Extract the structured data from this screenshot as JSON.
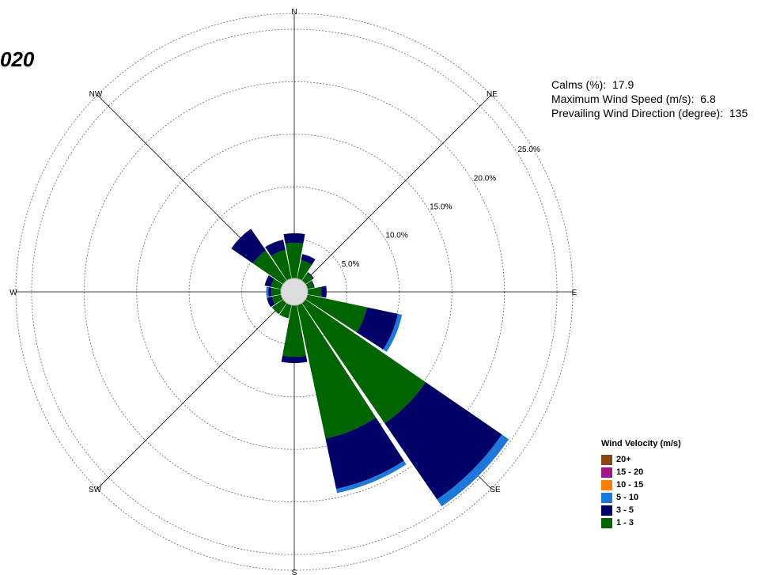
{
  "title": "020",
  "stats": {
    "calms_label": "Calms (%):",
    "calms_value": "17.9",
    "max_speed_label": "Maximum Wind Speed (m/s):",
    "max_speed_value": "6.8",
    "prevailing_label": "Prevailing Wind Direction (degree):",
    "prevailing_value": "135"
  },
  "legend": {
    "title": "Wind Velocity (m/s)",
    "items": [
      {
        "label": "20+",
        "color": "#8B4513"
      },
      {
        "label": "15 - 20",
        "color": "#A0148C"
      },
      {
        "label": "10 - 15",
        "color": "#FF7F00"
      },
      {
        "label": "5 - 10",
        "color": "#1E78DC"
      },
      {
        "label": "3 - 5",
        "color": "#000066"
      },
      {
        "label": "1 - 3",
        "color": "#006400"
      }
    ]
  },
  "chart_data": {
    "type": "windrose",
    "directions": [
      "N",
      "NNE",
      "NE",
      "ENE",
      "E",
      "ESE",
      "SE",
      "SSE",
      "S",
      "SSW",
      "SW",
      "WSW",
      "W",
      "WNW",
      "NW",
      "NNW"
    ],
    "compass_labels": [
      "N",
      "NE",
      "E",
      "SE",
      "S",
      "SW",
      "W",
      "NW"
    ],
    "radial_ticks": [
      5,
      10,
      15,
      20,
      25
    ],
    "radial_tick_labels": [
      "5.0%",
      "10.0%",
      "15.0%",
      "20.0%",
      "25.0%"
    ],
    "rmax": 26.5,
    "series": [
      {
        "name": "1 - 3",
        "color": "#006400",
        "values": [
          3.4,
          1.8,
          0.9,
          0.6,
          1.3,
          5.8,
          13.9,
          13.0,
          4.9,
          1.3,
          1.3,
          0.9,
          0.9,
          1.0,
          3.5,
          2.8
        ]
      },
      {
        "name": "3 - 5",
        "color": "#000066",
        "values": [
          0.9,
          0.6,
          0.1,
          0.1,
          0.5,
          3.0,
          8.8,
          4.9,
          0.6,
          0.0,
          0.0,
          0.5,
          0.3,
          0.6,
          2.5,
          1.0
        ]
      },
      {
        "name": "5 - 10",
        "color": "#1E78DC",
        "values": [
          0.0,
          0.0,
          0.0,
          0.0,
          0.0,
          0.4,
          0.8,
          0.4,
          0.0,
          0.0,
          0.0,
          0.0,
          0.2,
          0.0,
          0.0,
          0.0
        ]
      },
      {
        "name": "10 - 15",
        "color": "#FF7F00",
        "values": [
          0,
          0,
          0,
          0,
          0,
          0,
          0,
          0,
          0,
          0,
          0,
          0,
          0,
          0,
          0,
          0
        ]
      },
      {
        "name": "15 - 20",
        "color": "#A0148C",
        "values": [
          0,
          0,
          0,
          0,
          0,
          0,
          0,
          0,
          0,
          0,
          0,
          0,
          0,
          0,
          0,
          0
        ]
      },
      {
        "name": "20+",
        "color": "#8B4513",
        "values": [
          0,
          0,
          0,
          0,
          0,
          0,
          0,
          0,
          0,
          0,
          0,
          0,
          0,
          0,
          0,
          0
        ]
      }
    ]
  }
}
